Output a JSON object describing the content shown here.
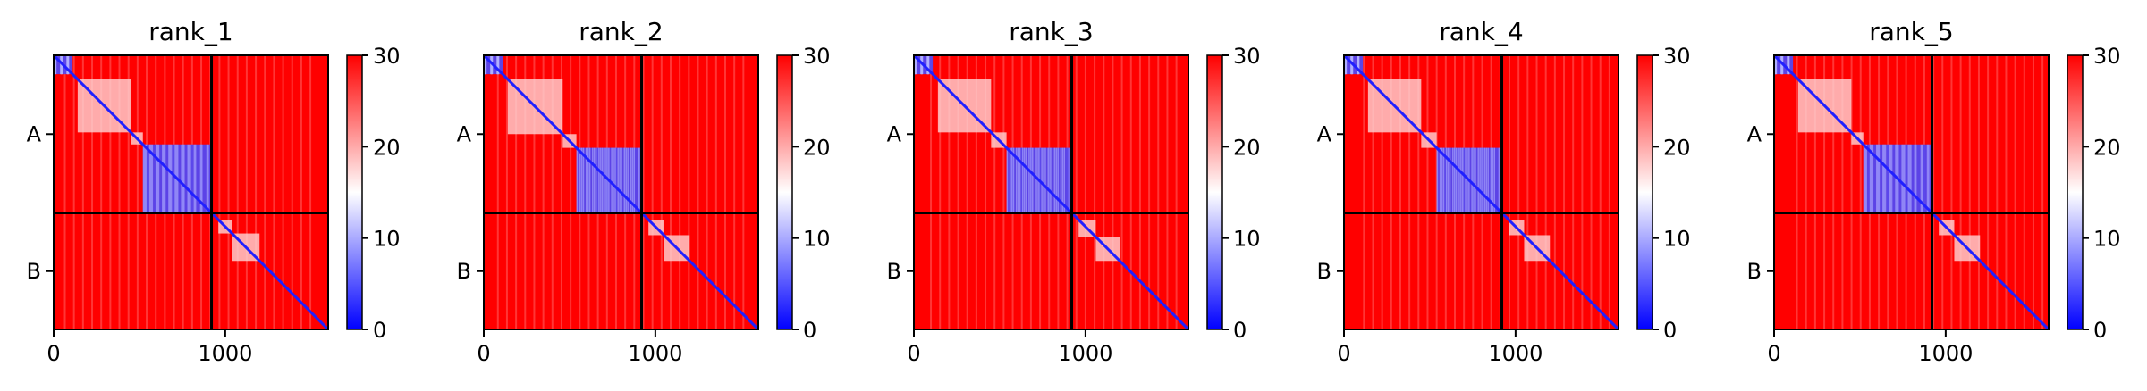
{
  "figure": {
    "panels": [
      {
        "title": "rank_1",
        "bands": [
          [
            0,
            110,
            "blue"
          ],
          [
            140,
            450,
            "white"
          ],
          [
            450,
            520,
            "white"
          ],
          [
            520,
            920,
            "blue"
          ],
          [
            960,
            1040,
            "white"
          ],
          [
            1040,
            1200,
            "white"
          ]
        ]
      },
      {
        "title": "rank_2",
        "bands": [
          [
            0,
            110,
            "blue"
          ],
          [
            140,
            460,
            "white"
          ],
          [
            460,
            540,
            "white"
          ],
          [
            540,
            920,
            "blue"
          ],
          [
            960,
            1050,
            "white"
          ],
          [
            1050,
            1200,
            "white"
          ]
        ]
      },
      {
        "title": "rank_3",
        "bands": [
          [
            0,
            110,
            "blue"
          ],
          [
            140,
            450,
            "white"
          ],
          [
            450,
            540,
            "white"
          ],
          [
            540,
            920,
            "blue"
          ],
          [
            960,
            1060,
            "white"
          ],
          [
            1060,
            1200,
            "white"
          ]
        ]
      },
      {
        "title": "rank_4",
        "bands": [
          [
            0,
            110,
            "blue"
          ],
          [
            140,
            450,
            "white"
          ],
          [
            450,
            540,
            "white"
          ],
          [
            540,
            920,
            "blue"
          ],
          [
            960,
            1050,
            "white"
          ],
          [
            1050,
            1200,
            "white"
          ]
        ]
      },
      {
        "title": "rank_5",
        "bands": [
          [
            0,
            110,
            "blue"
          ],
          [
            140,
            450,
            "white"
          ],
          [
            450,
            520,
            "white"
          ],
          [
            520,
            920,
            "blue"
          ],
          [
            960,
            1050,
            "white"
          ],
          [
            1050,
            1200,
            "white"
          ]
        ]
      }
    ]
  },
  "chart_data": {
    "type": "heatmap",
    "panel_titles": [
      "rank_1",
      "rank_2",
      "rank_3",
      "rank_4",
      "rank_5"
    ],
    "y_tick_labels": [
      "A",
      "B"
    ],
    "x_ticks": [
      0,
      1000
    ],
    "axis_range": [
      0,
      1600
    ],
    "chain_boundary": 920,
    "colorbar": {
      "ticks": [
        0,
        10,
        20,
        30
      ],
      "range": [
        0,
        30
      ],
      "colormap": "bwr",
      "colors": {
        "low": "#0000ff",
        "mid": "#ffffff",
        "high": "#ff0000"
      }
    },
    "grid": false
  }
}
